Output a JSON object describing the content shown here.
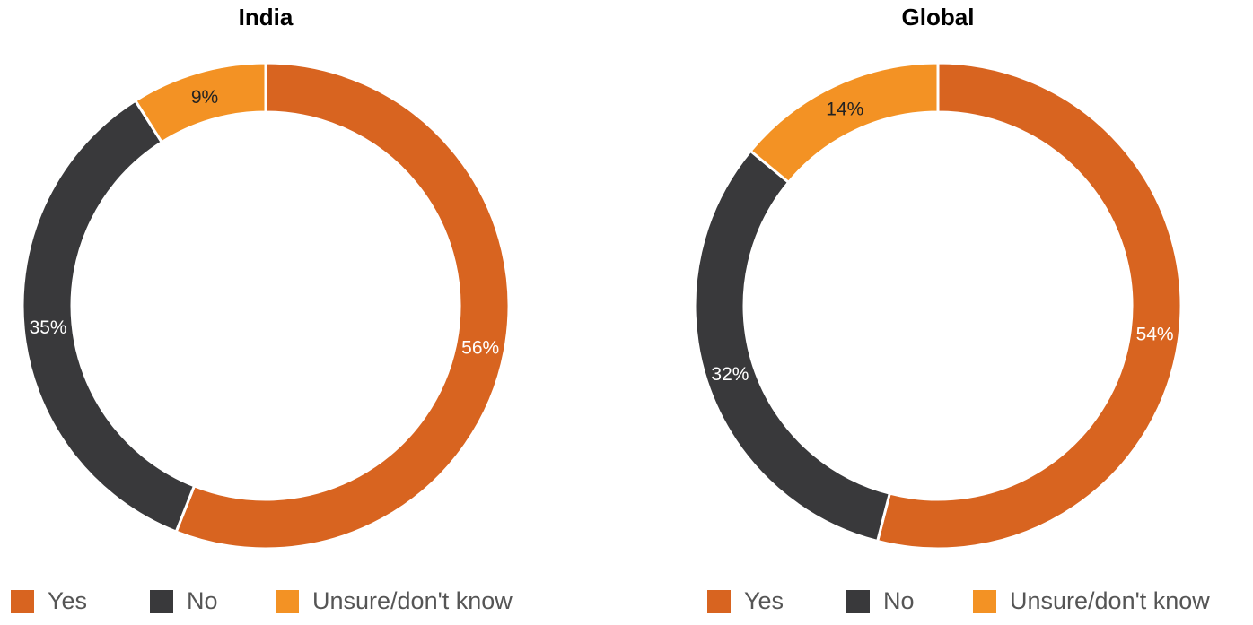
{
  "chart_data": [
    {
      "type": "pie",
      "variant": "donut",
      "title": "India",
      "categories": [
        "Yes",
        "No",
        "Unsure/don't know"
      ],
      "values": [
        56,
        35,
        9
      ],
      "labels": [
        "56%",
        "35%",
        "9%"
      ],
      "colors": [
        "#D86420",
        "#39393B",
        "#F39224"
      ],
      "legend_position": "bottom"
    },
    {
      "type": "pie",
      "variant": "donut",
      "title": "Global",
      "categories": [
        "Yes",
        "No",
        "Unsure/don't know"
      ],
      "values": [
        54,
        32,
        14
      ],
      "labels": [
        "54%",
        "32%",
        "14%"
      ],
      "colors": [
        "#D86420",
        "#39393B",
        "#F39224"
      ],
      "legend_position": "bottom"
    }
  ],
  "charts": [
    {
      "title": "India",
      "legend": [
        "Yes",
        "No",
        "Unsure/don't know"
      ]
    },
    {
      "title": "Global",
      "legend": [
        "Yes",
        "No",
        "Unsure/don't know"
      ]
    }
  ]
}
